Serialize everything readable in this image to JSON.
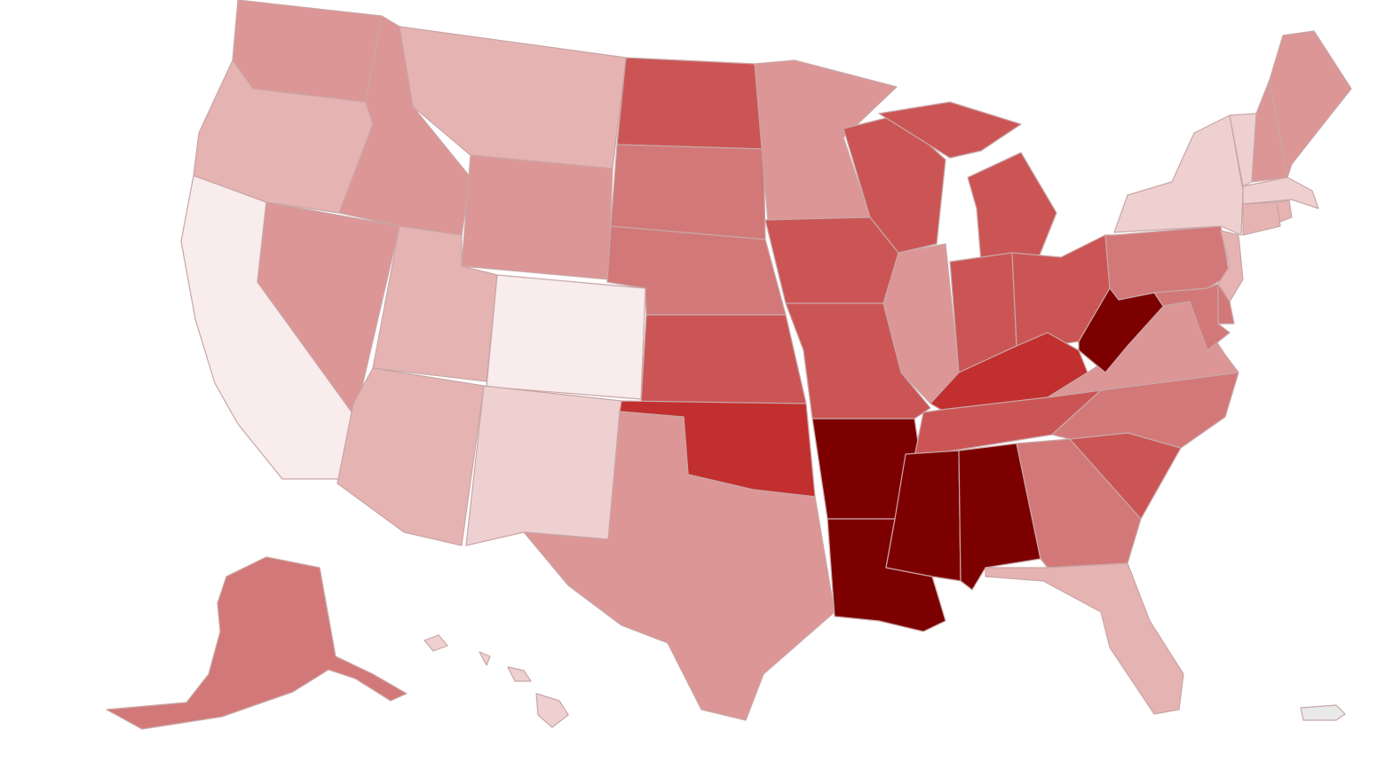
{
  "map": {
    "type": "us-states-choropleth",
    "palette": {
      "1": "#f8ecec",
      "2": "#efd0d0",
      "3": "#e6b3b3",
      "4": "#dc9696",
      "5": "#d37878",
      "6": "#cb5555",
      "7": "#c22f2f",
      "8": "#7d0000"
    },
    "no_data_color": "#e9e9e9",
    "states": [
      {
        "code": "WA",
        "level": 4
      },
      {
        "code": "OR",
        "level": 3
      },
      {
        "code": "CA",
        "level": 1
      },
      {
        "code": "NV",
        "level": 4
      },
      {
        "code": "ID",
        "level": 4
      },
      {
        "code": "MT",
        "level": 3
      },
      {
        "code": "WY",
        "level": 4
      },
      {
        "code": "UT",
        "level": 3
      },
      {
        "code": "CO",
        "level": 1
      },
      {
        "code": "AZ",
        "level": 3
      },
      {
        "code": "NM",
        "level": 2
      },
      {
        "code": "ND",
        "level": 6
      },
      {
        "code": "SD",
        "level": 5
      },
      {
        "code": "NE",
        "level": 5
      },
      {
        "code": "KS",
        "level": 6
      },
      {
        "code": "OK",
        "level": 7
      },
      {
        "code": "TX",
        "level": 4
      },
      {
        "code": "MN",
        "level": 4
      },
      {
        "code": "IA",
        "level": 6
      },
      {
        "code": "MO",
        "level": 6
      },
      {
        "code": "AR",
        "level": 8
      },
      {
        "code": "LA",
        "level": 8
      },
      {
        "code": "WI",
        "level": 6
      },
      {
        "code": "IL",
        "level": 4
      },
      {
        "code": "MI",
        "level": 6
      },
      {
        "code": "IN",
        "level": 6
      },
      {
        "code": "OH",
        "level": 6
      },
      {
        "code": "KY",
        "level": 7
      },
      {
        "code": "TN",
        "level": 6
      },
      {
        "code": "MS",
        "level": 8
      },
      {
        "code": "AL",
        "level": 8
      },
      {
        "code": "GA",
        "level": 5
      },
      {
        "code": "FL",
        "level": 3
      },
      {
        "code": "SC",
        "level": 6
      },
      {
        "code": "NC",
        "level": 5
      },
      {
        "code": "VA",
        "level": 4
      },
      {
        "code": "WV",
        "level": 8
      },
      {
        "code": "PA",
        "level": 5
      },
      {
        "code": "NY",
        "level": 2
      },
      {
        "code": "VT",
        "level": 2
      },
      {
        "code": "NH",
        "level": 4
      },
      {
        "code": "ME",
        "level": 4
      },
      {
        "code": "MA",
        "level": 2
      },
      {
        "code": "RI",
        "level": 3
      },
      {
        "code": "CT",
        "level": 3
      },
      {
        "code": "NJ",
        "level": 3
      },
      {
        "code": "DE",
        "level": 5
      },
      {
        "code": "MD",
        "level": 5
      },
      {
        "code": "AK",
        "level": 5
      },
      {
        "code": "HI",
        "level": 2
      },
      {
        "code": "PR",
        "level": 0
      }
    ]
  }
}
